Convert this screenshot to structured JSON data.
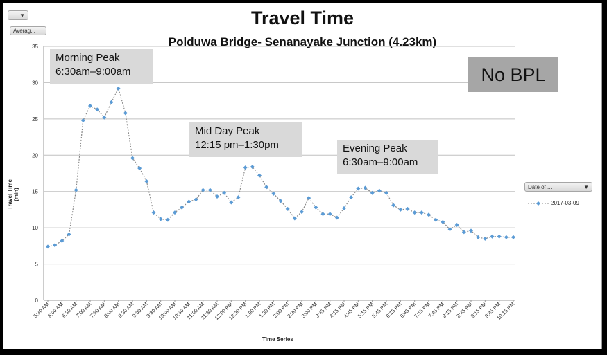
{
  "filter_buttons": {
    "top_left_icon": "filter-dropdown-icon",
    "values_field": "Averag..."
  },
  "legend": {
    "field_button": "Date of ...",
    "entry": "2017-03-09",
    "marker": "diamond",
    "line_style": "dashed"
  },
  "annotations": {
    "morning_title": "Morning Peak",
    "morning_time": "6:30am–9:00am",
    "midday_title": "Mid Day Peak",
    "midday_time": "12:15 pm–1:30pm",
    "evening_title": "Evening Peak",
    "evening_time": "6:30am–9:00am",
    "badge": "No BPL"
  },
  "colors": {
    "series": "#5b9bd5",
    "line": "#888888",
    "grid": "#c0c0c0",
    "callout": "#d9d9d9",
    "badge": "#a6a6a6"
  },
  "chart_data": {
    "type": "line",
    "title": "Travel Time",
    "subtitle": "Polduwa Bridge- Senanayake Junction (4.23km)",
    "xlabel": "Time Series",
    "ylabel": "Travel Time (min)",
    "ylim": [
      0,
      35
    ],
    "yticks": [
      0,
      5,
      10,
      15,
      20,
      25,
      30,
      35
    ],
    "grid": true,
    "legend_position": "right",
    "x_tick_labels": [
      "5:30 AM",
      "6:00 AM",
      "6:30 AM",
      "7:00 AM",
      "7:30 AM",
      "8:00 AM",
      "8:30 AM",
      "9:00 AM",
      "9:30 AM",
      "10:00 AM",
      "10:30 AM",
      "11:00 AM",
      "11:30 AM",
      "12:00 PM",
      "12:30 PM",
      "1:00 PM",
      "1:30 PM",
      "2:00 PM",
      "2:30 PM",
      "3:00 PM",
      "3:45 PM",
      "4:15 PM",
      "4:45 PM",
      "5:15 PM",
      "5:45 PM",
      "6:15 PM",
      "6:45 PM",
      "7:15 PM",
      "7:45 PM",
      "8:15 PM",
      "8:45 PM",
      "9:15 PM",
      "9:45 PM",
      "10:15 PM"
    ],
    "series": [
      {
        "name": "2017-03-09",
        "values": [
          7.4,
          7.6,
          8.2,
          9.1,
          15.2,
          24.8,
          26.8,
          26.3,
          25.2,
          27.3,
          29.2,
          25.8,
          19.6,
          18.2,
          16.4,
          12.1,
          11.2,
          11.1,
          12.1,
          12.8,
          13.6,
          13.9,
          15.2,
          15.2,
          14.3,
          14.8,
          13.5,
          14.2,
          18.3,
          18.4,
          17.2,
          15.6,
          14.7,
          13.7,
          12.6,
          11.3,
          12.2,
          14.1,
          12.8,
          11.9,
          11.9,
          11.4,
          12.7,
          14.2,
          15.4,
          15.5,
          14.8,
          15.1,
          14.8,
          13.1,
          12.5,
          12.6,
          12.1,
          12.1,
          11.8,
          11.1,
          10.8,
          9.8,
          10.4,
          9.4,
          9.6,
          8.7,
          8.5,
          8.8,
          8.8,
          8.7,
          8.7
        ]
      }
    ]
  }
}
